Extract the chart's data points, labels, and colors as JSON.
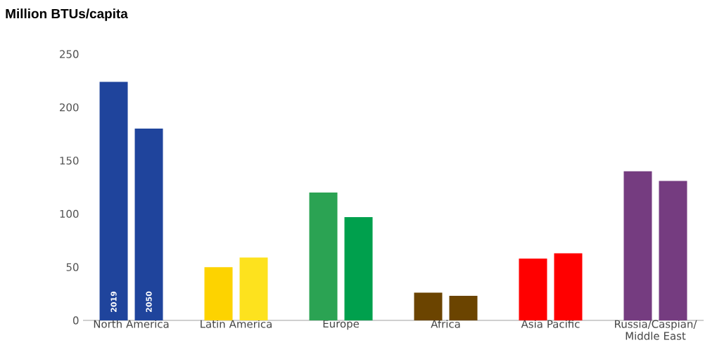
{
  "chart_data": {
    "type": "bar",
    "title": "Million BTUs/capita",
    "categories": [
      "North America",
      "Latin America",
      "Europe",
      "Africa",
      "Asia Pacific",
      "Russia/Caspian/ Middle East"
    ],
    "series": [
      {
        "name": "2019",
        "colors": [
          "#1f449c",
          "#fdd300",
          "#2ba353",
          "#6b4400",
          "#ff0000",
          "#753c80"
        ],
        "values": [
          224,
          50,
          120,
          26,
          58,
          140
        ]
      },
      {
        "name": "2050",
        "colors": [
          "#1f449c",
          "#fde21e",
          "#00a04d",
          "#6b4400",
          "#ff0000",
          "#753c80"
        ],
        "values": [
          180,
          59,
          97,
          23,
          63,
          131
        ]
      }
    ],
    "ylim": [
      0,
      250
    ],
    "yticks": [
      0,
      50,
      100,
      150,
      200,
      250
    ]
  }
}
